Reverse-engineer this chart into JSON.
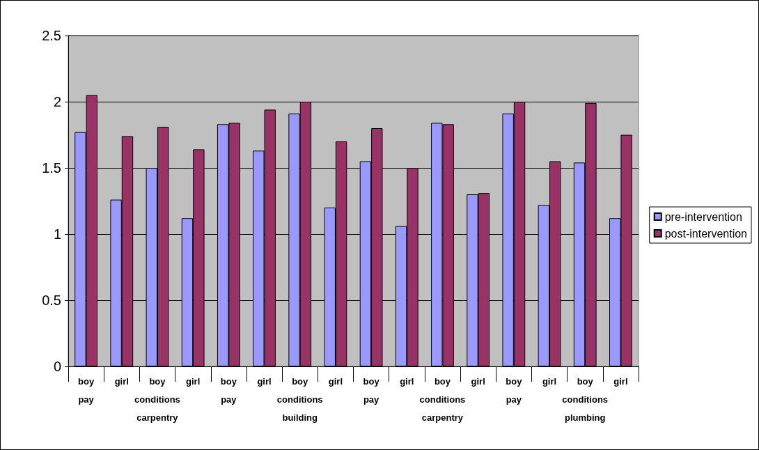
{
  "chart_data": {
    "type": "bar",
    "categories": [
      "boy\npay",
      "girl",
      "boy\nconditions\ncarpentry",
      "girl",
      "boy\npay",
      "girl",
      "boy\nconditions\nbuilding",
      "girl",
      "boy\npay",
      "girl",
      "boy\nconditions\ncarpentry",
      "girl",
      "boy\npay",
      "girl",
      "boy\nconditions\nplumbing",
      "girl"
    ],
    "series": [
      {
        "name": "pre-intervention",
        "color": "#9999ff",
        "values": [
          1.77,
          1.26,
          1.5,
          1.12,
          1.83,
          1.63,
          1.91,
          1.2,
          1.55,
          1.06,
          1.84,
          1.3,
          1.91,
          1.22,
          1.54,
          1.12
        ]
      },
      {
        "name": "post-intervention",
        "color": "#993366",
        "values": [
          2.05,
          1.74,
          1.81,
          1.64,
          1.84,
          1.94,
          2.0,
          1.7,
          1.8,
          1.5,
          1.83,
          1.31,
          2.0,
          1.55,
          1.99,
          1.75
        ]
      }
    ],
    "ylim": [
      0,
      2.5
    ],
    "yticks": [
      0,
      0.5,
      1,
      1.5,
      2,
      2.5
    ],
    "grid": "y",
    "legend": "right"
  }
}
